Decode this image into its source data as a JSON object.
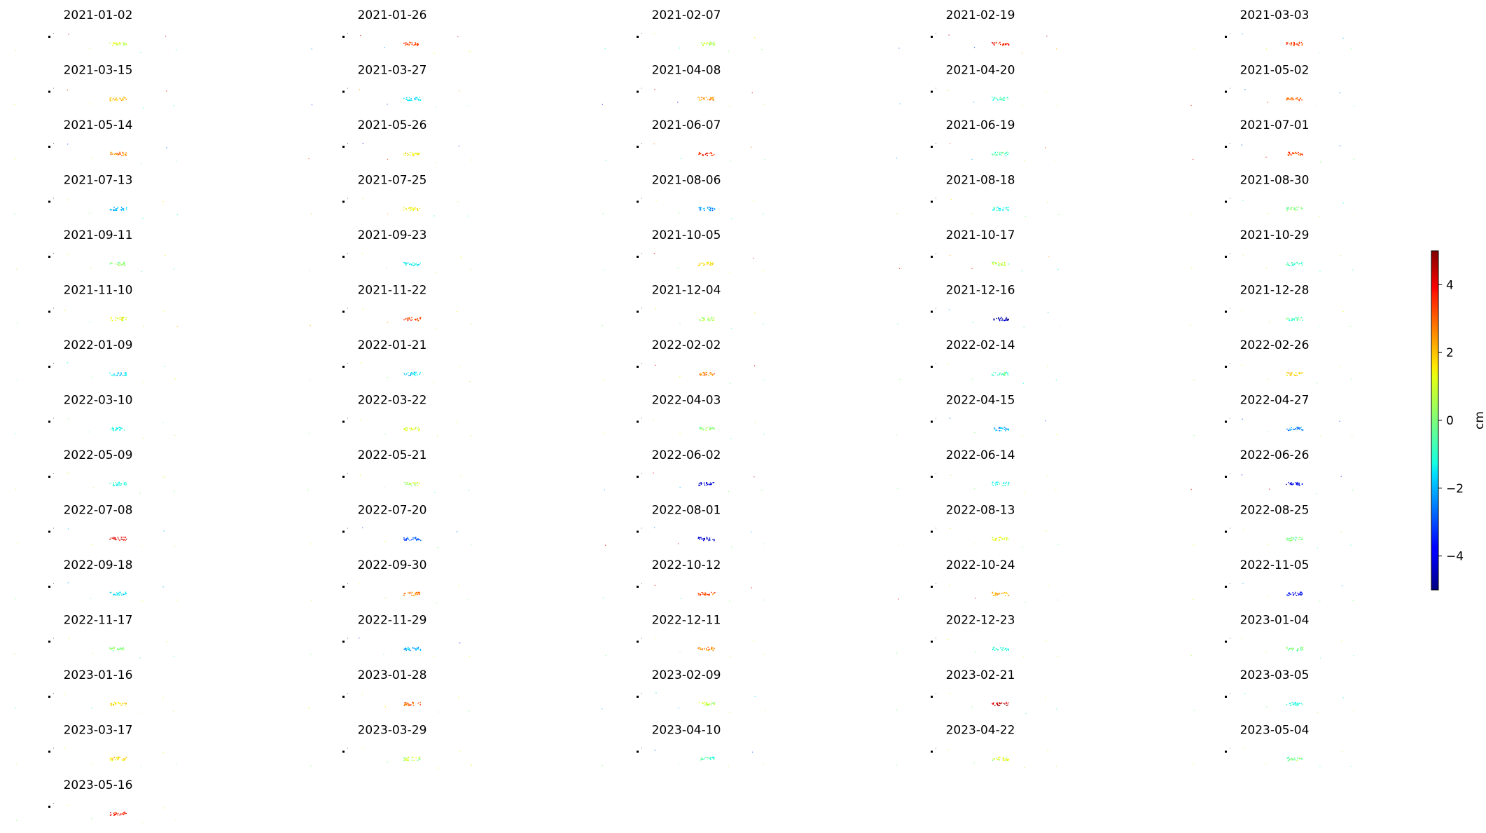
{
  "chart_data": {
    "type": "scatter",
    "layout": "small-multiples grid of displacement maps",
    "grid": false,
    "axes_visible": false,
    "colormap": "jet",
    "colorbar": {
      "label": "cm",
      "range": [
        -5,
        5
      ],
      "ticks": [
        4,
        2,
        0,
        -2,
        -4
      ],
      "tick_labels": [
        "4",
        "2",
        "0",
        "−2",
        "−4"
      ],
      "placement": "right"
    },
    "reference_point_color": "#000000",
    "panels": [
      {
        "title": "2021-01-02",
        "cluster_value": 0.8,
        "outlier_values": [
          4.2,
          0.5,
          -1.2
        ]
      },
      {
        "title": "2021-01-26",
        "cluster_value": 3.0,
        "outlier_values": [
          4.0,
          -2.0,
          1.0
        ]
      },
      {
        "title": "2021-02-07",
        "cluster_value": 0.5,
        "outlier_values": [
          1.5,
          -1.0,
          0.2
        ]
      },
      {
        "title": "2021-02-19",
        "cluster_value": 3.5,
        "outlier_values": [
          4.5,
          -3.0,
          2.0
        ]
      },
      {
        "title": "2021-03-03",
        "cluster_value": 3.2,
        "outlier_values": [
          -2.0,
          1.0,
          0.0
        ]
      },
      {
        "title": "2021-03-15",
        "cluster_value": 2.0,
        "outlier_values": [
          3.5,
          1.0,
          -1.0
        ]
      },
      {
        "title": "2021-03-27",
        "cluster_value": -1.5,
        "outlier_values": [
          2.0,
          -3.0,
          0.0
        ]
      },
      {
        "title": "2021-04-08",
        "cluster_value": 2.2,
        "outlier_values": [
          4.0,
          -3.5,
          0.5
        ]
      },
      {
        "title": "2021-04-20",
        "cluster_value": -0.5,
        "outlier_values": [
          1.5,
          -2.0,
          0.5
        ]
      },
      {
        "title": "2021-05-02",
        "cluster_value": 2.8,
        "outlier_values": [
          -2.5,
          3.5,
          0.0
        ]
      },
      {
        "title": "2021-05-14",
        "cluster_value": 2.5,
        "outlier_values": [
          -3.0,
          1.0,
          0.0
        ]
      },
      {
        "title": "2021-05-26",
        "cluster_value": 1.5,
        "outlier_values": [
          -3.5,
          3.0,
          0.5
        ]
      },
      {
        "title": "2021-06-07",
        "cluster_value": 3.5,
        "outlier_values": [
          2.5,
          -1.0,
          0.0
        ]
      },
      {
        "title": "2021-06-19",
        "cluster_value": -0.5,
        "outlier_values": [
          3.0,
          -2.0,
          0.5
        ]
      },
      {
        "title": "2021-07-01",
        "cluster_value": 3.0,
        "outlier_values": [
          -3.0,
          4.0,
          0.0
        ]
      },
      {
        "title": "2021-07-13",
        "cluster_value": -2.0,
        "outlier_values": [
          1.5,
          0.0,
          -1.0
        ]
      },
      {
        "title": "2021-07-25",
        "cluster_value": 1.2,
        "outlier_values": [
          0.5,
          2.0,
          -1.0
        ]
      },
      {
        "title": "2021-08-06",
        "cluster_value": -2.2,
        "outlier_values": [
          1.0,
          0.0,
          -1.0
        ]
      },
      {
        "title": "2021-08-18",
        "cluster_value": -1.0,
        "outlier_values": [
          1.5,
          0.5,
          0.0
        ]
      },
      {
        "title": "2021-08-30",
        "cluster_value": 0.0,
        "outlier_values": [
          -1.0,
          1.0,
          0.5
        ]
      },
      {
        "title": "2021-09-11",
        "cluster_value": 0.0,
        "outlier_values": [
          1.5,
          0.5,
          -0.5
        ]
      },
      {
        "title": "2021-09-23",
        "cluster_value": -1.2,
        "outlier_values": [
          1.0,
          0.0,
          0.5
        ]
      },
      {
        "title": "2021-10-05",
        "cluster_value": 1.5,
        "outlier_values": [
          4.0,
          0.0,
          1.0
        ]
      },
      {
        "title": "2021-10-17",
        "cluster_value": 0.5,
        "outlier_values": [
          2.0,
          3.5,
          -1.0
        ]
      },
      {
        "title": "2021-10-29",
        "cluster_value": -0.8,
        "outlier_values": [
          0.5,
          1.5,
          -0.5
        ]
      },
      {
        "title": "2021-11-10",
        "cluster_value": 1.0,
        "outlier_values": [
          1.5,
          0.0,
          2.0
        ]
      },
      {
        "title": "2021-11-22",
        "cluster_value": 3.0,
        "outlier_values": [
          1.5,
          2.0,
          0.5
        ]
      },
      {
        "title": "2021-12-04",
        "cluster_value": 0.5,
        "outlier_values": [
          1.5,
          0.0,
          -0.5
        ]
      },
      {
        "title": "2021-12-16",
        "cluster_value": -4.5,
        "outlier_values": [
          -2.0,
          -1.0,
          0.0
        ]
      },
      {
        "title": "2021-12-28",
        "cluster_value": -0.5,
        "outlier_values": [
          1.0,
          0.5,
          0.0
        ]
      },
      {
        "title": "2022-01-09",
        "cluster_value": -1.5,
        "outlier_values": [
          -1.0,
          0.0,
          1.0
        ]
      },
      {
        "title": "2022-01-21",
        "cluster_value": -1.5,
        "outlier_values": [
          1.0,
          0.0,
          0.5
        ]
      },
      {
        "title": "2022-02-02",
        "cluster_value": 2.5,
        "outlier_values": [
          4.0,
          1.0,
          0.0
        ]
      },
      {
        "title": "2022-02-14",
        "cluster_value": -0.5,
        "outlier_values": [
          1.5,
          0.0,
          -1.0
        ]
      },
      {
        "title": "2022-02-26",
        "cluster_value": 1.5,
        "outlier_values": [
          1.0,
          0.5,
          0.0
        ]
      },
      {
        "title": "2022-03-10",
        "cluster_value": -1.0,
        "outlier_values": [
          0.0,
          -0.5,
          0.5
        ]
      },
      {
        "title": "2022-03-22",
        "cluster_value": 0.8,
        "outlier_values": [
          1.0,
          0.0,
          1.5
        ]
      },
      {
        "title": "2022-04-03",
        "cluster_value": 0.0,
        "outlier_values": [
          0.5,
          1.0,
          -0.5
        ]
      },
      {
        "title": "2022-04-15",
        "cluster_value": -2.0,
        "outlier_values": [
          -3.0,
          0.0,
          1.0
        ]
      },
      {
        "title": "2022-04-27",
        "cluster_value": -2.5,
        "outlier_values": [
          -3.0,
          0.0,
          0.5
        ]
      },
      {
        "title": "2022-05-09",
        "cluster_value": -1.0,
        "outlier_values": [
          1.5,
          0.5,
          0.0
        ]
      },
      {
        "title": "2022-05-21",
        "cluster_value": 0.5,
        "outlier_values": [
          1.5,
          0.0,
          -0.5
        ]
      },
      {
        "title": "2022-06-02",
        "cluster_value": -4.0,
        "outlier_values": [
          4.0,
          -2.0,
          0.0
        ]
      },
      {
        "title": "2022-06-14",
        "cluster_value": -1.0,
        "outlier_values": [
          0.5,
          0.0,
          1.0
        ]
      },
      {
        "title": "2022-06-26",
        "cluster_value": -4.0,
        "outlier_values": [
          -3.5,
          4.0,
          0.0
        ]
      },
      {
        "title": "2022-07-08",
        "cluster_value": 4.0,
        "outlier_values": [
          -2.0,
          1.0,
          0.5
        ]
      },
      {
        "title": "2022-07-20",
        "cluster_value": -3.0,
        "outlier_values": [
          -3.0,
          1.0,
          0.0
        ]
      },
      {
        "title": "2022-08-01",
        "cluster_value": -4.0,
        "outlier_values": [
          -2.0,
          4.0,
          0.0
        ]
      },
      {
        "title": "2022-08-13",
        "cluster_value": 1.0,
        "outlier_values": [
          1.5,
          0.5,
          0.0
        ]
      },
      {
        "title": "2022-08-25",
        "cluster_value": 0.0,
        "outlier_values": [
          0.5,
          1.0,
          -0.5
        ]
      },
      {
        "title": "2022-09-18",
        "cluster_value": -1.5,
        "outlier_values": [
          -2.0,
          0.0,
          1.0
        ]
      },
      {
        "title": "2022-09-30",
        "cluster_value": 2.5,
        "outlier_values": [
          1.0,
          0.5,
          0.0
        ]
      },
      {
        "title": "2022-10-12",
        "cluster_value": 3.0,
        "outlier_values": [
          4.0,
          -1.0,
          0.0
        ]
      },
      {
        "title": "2022-10-24",
        "cluster_value": 2.0,
        "outlier_values": [
          1.0,
          4.0,
          0.0
        ]
      },
      {
        "title": "2022-11-05",
        "cluster_value": -4.0,
        "outlier_values": [
          -2.0,
          1.0,
          0.0
        ]
      },
      {
        "title": "2022-11-17",
        "cluster_value": 0.0,
        "outlier_values": [
          1.5,
          0.5,
          -0.5
        ]
      },
      {
        "title": "2022-11-29",
        "cluster_value": -2.0,
        "outlier_values": [
          -3.5,
          0.0,
          1.0
        ]
      },
      {
        "title": "2022-12-11",
        "cluster_value": 2.5,
        "outlier_values": [
          1.0,
          0.0,
          0.5
        ]
      },
      {
        "title": "2022-12-23",
        "cluster_value": -1.0,
        "outlier_values": [
          1.0,
          0.0,
          0.5
        ]
      },
      {
        "title": "2023-01-04",
        "cluster_value": 0.0,
        "outlier_values": [
          1.0,
          0.5,
          -0.5
        ]
      },
      {
        "title": "2023-01-16",
        "cluster_value": 1.5,
        "outlier_values": [
          1.0,
          -1.0,
          0.5
        ]
      },
      {
        "title": "2023-01-28",
        "cluster_value": 3.0,
        "outlier_values": [
          1.0,
          1.5,
          0.0
        ]
      },
      {
        "title": "2023-02-09",
        "cluster_value": 0.5,
        "outlier_values": [
          -1.5,
          -2.0,
          0.5
        ]
      },
      {
        "title": "2023-02-21",
        "cluster_value": 4.2,
        "outlier_values": [
          1.5,
          0.0,
          -0.5
        ]
      },
      {
        "title": "2023-03-05",
        "cluster_value": -1.0,
        "outlier_values": [
          -1.0,
          0.0,
          0.5
        ]
      },
      {
        "title": "2023-03-17",
        "cluster_value": 1.5,
        "outlier_values": [
          1.0,
          0.5,
          0.0
        ]
      },
      {
        "title": "2023-03-29",
        "cluster_value": 0.5,
        "outlier_values": [
          1.0,
          0.0,
          1.5
        ]
      },
      {
        "title": "2023-04-10",
        "cluster_value": -0.5,
        "outlier_values": [
          -3.0,
          0.0,
          0.5
        ]
      },
      {
        "title": "2023-04-22",
        "cluster_value": 0.8,
        "outlier_values": [
          1.0,
          0.0,
          0.5
        ]
      },
      {
        "title": "2023-05-04",
        "cluster_value": 0.0,
        "outlier_values": [
          0.5,
          1.0,
          -0.5
        ]
      },
      {
        "title": "2023-05-16",
        "cluster_value": 3.5,
        "outlier_values": [
          1.0,
          0.0,
          0.5
        ]
      }
    ]
  }
}
